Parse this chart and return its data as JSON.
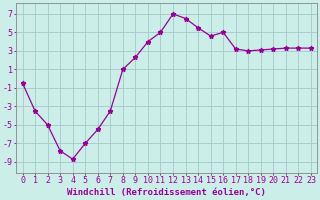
{
  "x": [
    0,
    1,
    2,
    3,
    4,
    5,
    6,
    7,
    8,
    9,
    10,
    11,
    12,
    13,
    14,
    15,
    16,
    17,
    18,
    19,
    20,
    21,
    22,
    23
  ],
  "y": [
    -0.5,
    -3.5,
    -5.0,
    -7.8,
    -8.7,
    -7.0,
    -5.5,
    -3.5,
    1.0,
    2.3,
    4.0,
    5.0,
    7.0,
    6.5,
    5.5,
    4.6,
    5.0,
    3.2,
    3.0,
    3.1,
    3.2,
    3.3,
    3.3,
    3.3
  ],
  "line_color": "#990099",
  "marker": "*",
  "marker_size": 3.5,
  "bg_color": "#cceee8",
  "grid_color": "#aacccc",
  "xlabel": "Windchill (Refroidissement éolien,°C)",
  "xlabel_fontsize": 6.5,
  "ylabel_ticks": [
    -9,
    -7,
    -5,
    -3,
    -1,
    1,
    3,
    5,
    7
  ],
  "xlim": [
    -0.5,
    23.5
  ],
  "ylim": [
    -10.2,
    8.2
  ],
  "tick_fontsize": 6.0
}
